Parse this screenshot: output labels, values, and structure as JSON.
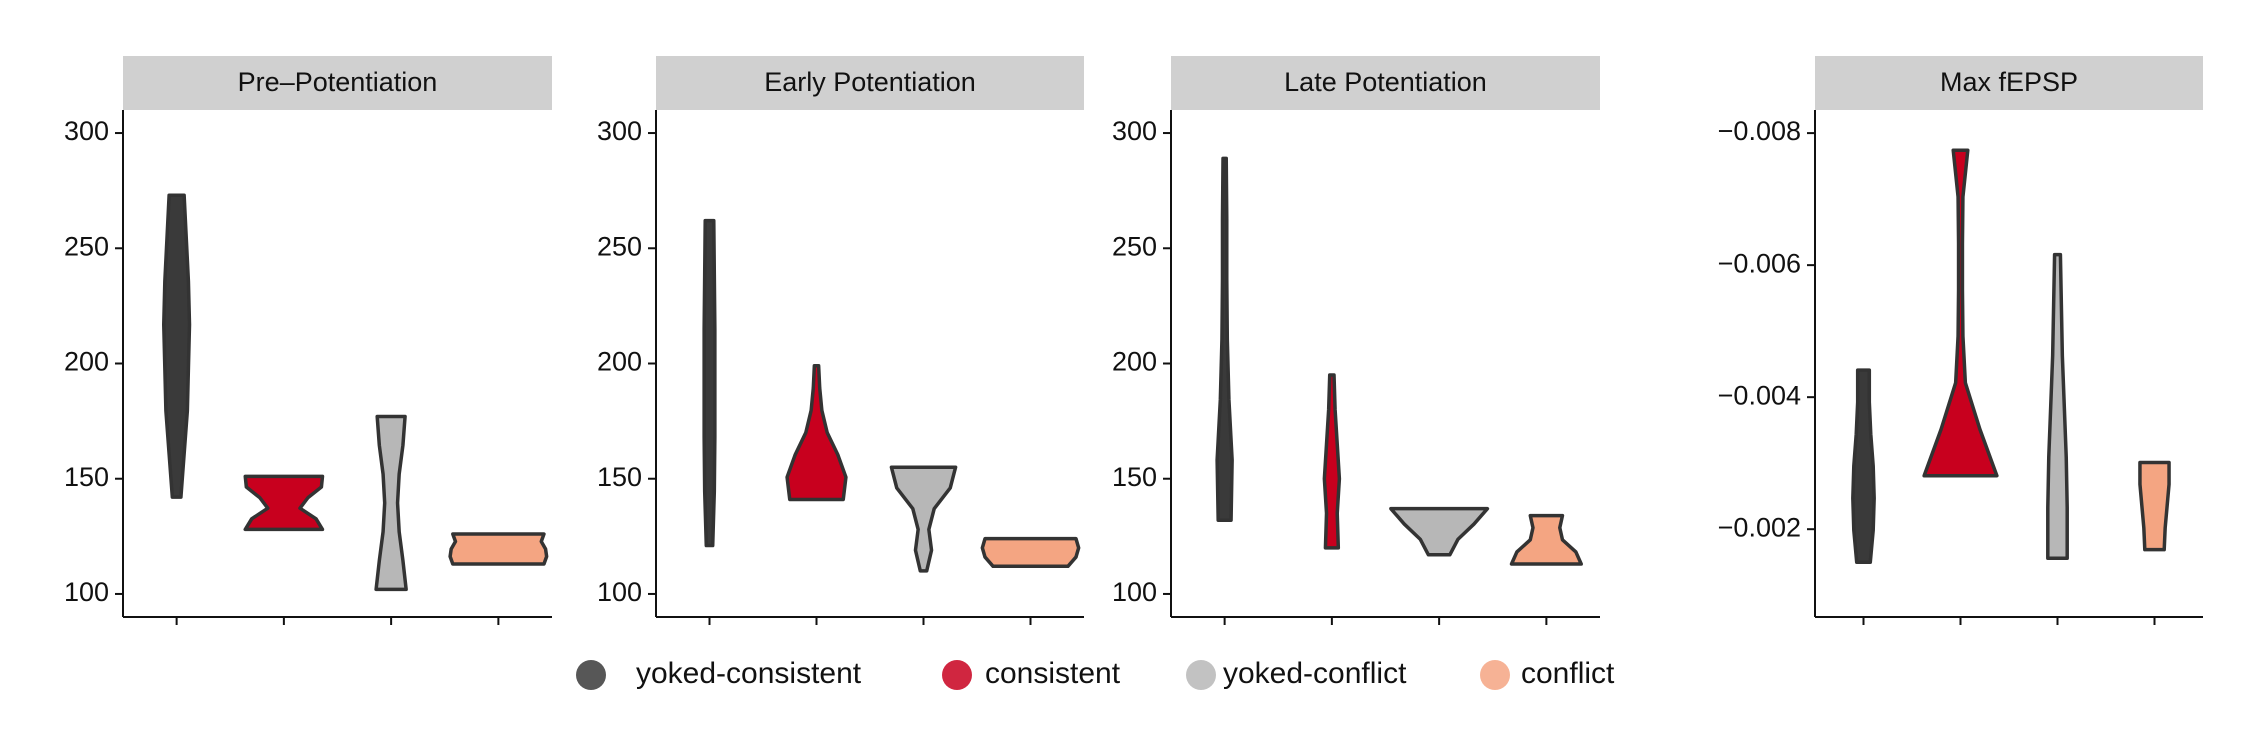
{
  "chart_data": [
    {
      "type": "violin",
      "title": "Pre–Potentiation",
      "ylim": [
        90,
        310
      ],
      "yticks": [
        100,
        150,
        200,
        250,
        300
      ],
      "series": [
        {
          "name": "yoked-consistent",
          "color": "#3a3a3a",
          "min": 142,
          "max": 273,
          "density": [
            0.08,
            0.14,
            0.2,
            0.22,
            0.24,
            0.22,
            0.18,
            0.14
          ]
        },
        {
          "name": "consistent",
          "color": "#c8001e",
          "min": 128,
          "max": 151,
          "density": [
            0.72,
            0.6,
            0.3,
            0.45,
            0.7,
            0.72
          ]
        },
        {
          "name": "yoked-conflict",
          "color": "#b7b7b7",
          "min": 102,
          "max": 177,
          "density": [
            0.28,
            0.22,
            0.15,
            0.12,
            0.15,
            0.22,
            0.26
          ]
        },
        {
          "name": "conflict",
          "color": "#f4a582",
          "min": 113,
          "max": 126,
          "density": [
            0.85,
            0.9,
            0.88,
            0.8,
            0.85
          ]
        }
      ]
    },
    {
      "type": "violin",
      "title": "Early Potentiation",
      "ylim": [
        90,
        310
      ],
      "yticks": [
        100,
        150,
        200,
        250,
        300
      ],
      "series": [
        {
          "name": "yoked-consistent",
          "color": "#3a3a3a",
          "min": 121,
          "max": 262,
          "density": [
            0.06,
            0.09,
            0.1,
            0.1,
            0.1,
            0.09,
            0.08
          ]
        },
        {
          "name": "consistent",
          "color": "#c8001e",
          "min": 141,
          "max": 199,
          "density": [
            0.5,
            0.55,
            0.4,
            0.2,
            0.1,
            0.06,
            0.04
          ]
        },
        {
          "name": "yoked-conflict",
          "color": "#b7b7b7",
          "min": 110,
          "max": 155,
          "density": [
            0.06,
            0.15,
            0.1,
            0.2,
            0.5,
            0.6
          ]
        },
        {
          "name": "conflict",
          "color": "#f4a582",
          "min": 112,
          "max": 124,
          "density": [
            0.7,
            0.85,
            0.9,
            0.85
          ]
        }
      ]
    },
    {
      "type": "violin",
      "title": "Late Potentiation",
      "ylim": [
        90,
        310
      ],
      "yticks": [
        100,
        150,
        200,
        250,
        300
      ],
      "series": [
        {
          "name": "yoked-consistent",
          "color": "#3a3a3a",
          "min": 132,
          "max": 289,
          "density": [
            0.12,
            0.14,
            0.08,
            0.05,
            0.04,
            0.04,
            0.03
          ]
        },
        {
          "name": "consistent",
          "color": "#c8001e",
          "min": 120,
          "max": 195,
          "density": [
            0.12,
            0.1,
            0.14,
            0.1,
            0.06,
            0.04
          ]
        },
        {
          "name": "yoked-conflict",
          "color": "#b7b7b7",
          "min": 117,
          "max": 137,
          "density": [
            0.2,
            0.35,
            0.65,
            0.9
          ]
        },
        {
          "name": "conflict",
          "color": "#f4a582",
          "min": 113,
          "max": 134,
          "density": [
            0.65,
            0.55,
            0.3,
            0.25,
            0.3
          ]
        }
      ]
    },
    {
      "type": "violin",
      "title": "Max fEPSP",
      "ylim": [
        -0.00067,
        -0.00835
      ],
      "yticks": [
        {
          "value": -0.008,
          "label": "−0.008"
        },
        {
          "value": -0.006,
          "label": "−0.006"
        },
        {
          "value": -0.004,
          "label": "−0.004"
        },
        {
          "value": -0.002,
          "label": "−0.002"
        }
      ],
      "series": [
        {
          "name": "yoked-consistent",
          "color": "#3a3a3a",
          "min": -0.00441,
          "max": -0.0015,
          "density": [
            0.12,
            0.12,
            0.15,
            0.2,
            0.22,
            0.2,
            0.14
          ]
        },
        {
          "name": "consistent",
          "color": "#c8001e",
          "min": -0.00774,
          "max": -0.00281,
          "density": [
            0.15,
            0.05,
            0.04,
            0.04,
            0.05,
            0.1,
            0.4,
            0.75
          ]
        },
        {
          "name": "yoked-conflict",
          "color": "#b7b7b7",
          "min": -0.00616,
          "max": -0.00156,
          "density": [
            0.06,
            0.08,
            0.1,
            0.14,
            0.18,
            0.2,
            0.2
          ]
        },
        {
          "name": "conflict",
          "color": "#f4a582",
          "min": -0.00301,
          "max": -0.00169,
          "density": [
            0.3,
            0.3,
            0.26,
            0.22,
            0.2
          ]
        }
      ]
    }
  ]
}
